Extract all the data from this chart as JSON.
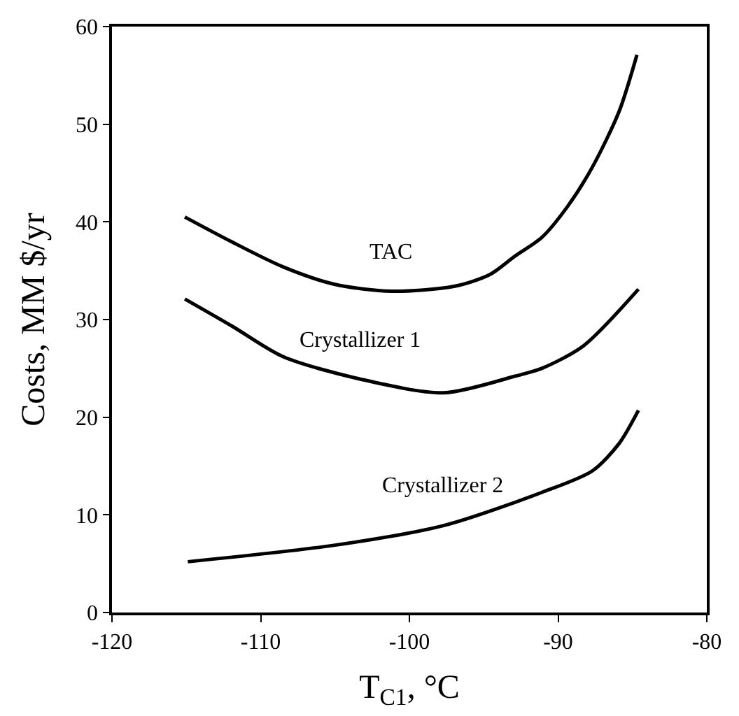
{
  "chart_data": {
    "type": "line",
    "xlabel": "T$_{C1}$, °C",
    "ylabel": "Costs, MM $/yr",
    "xlim": [
      -120,
      -80
    ],
    "xticks": [
      -120,
      -110,
      -100,
      -90,
      -80
    ],
    "ylim": [
      0,
      60
    ],
    "yticks": [
      0,
      10,
      20,
      30,
      40,
      50,
      60
    ],
    "legend": false,
    "marker": "none",
    "line_style": "solid",
    "series": [
      {
        "name": "TAC",
        "color": "#000000",
        "x": [
          -115.1,
          -112,
          -108.5,
          -105,
          -101.2,
          -97,
          -94.6,
          -92.9,
          -91.1,
          -89.4,
          -87.7,
          -85.9,
          -84.7
        ],
        "values": [
          40.5,
          38,
          35.4,
          33.6,
          32.9,
          33.4,
          34.6,
          36.5,
          38.4,
          41.5,
          45.6,
          51.3,
          57.1
        ]
      },
      {
        "name": "Crystallizer 1",
        "color": "#000000",
        "x": [
          -115.1,
          -111.9,
          -108.5,
          -103.3,
          -97.7,
          -92.9,
          -91.1,
          -88.3,
          -84.6
        ],
        "values": [
          32.1,
          29.3,
          26.2,
          23.9,
          22.5,
          24.2,
          25.0,
          27.3,
          33.1
        ]
      },
      {
        "name": "Crystallizer 2",
        "color": "#000000",
        "x": [
          -114.9,
          -105,
          -97.7,
          -91.1,
          -87.7,
          -85.9,
          -84.6
        ],
        "values": [
          5.2,
          6.9,
          8.9,
          12.3,
          14.5,
          17.3,
          20.7
        ]
      }
    ]
  }
}
